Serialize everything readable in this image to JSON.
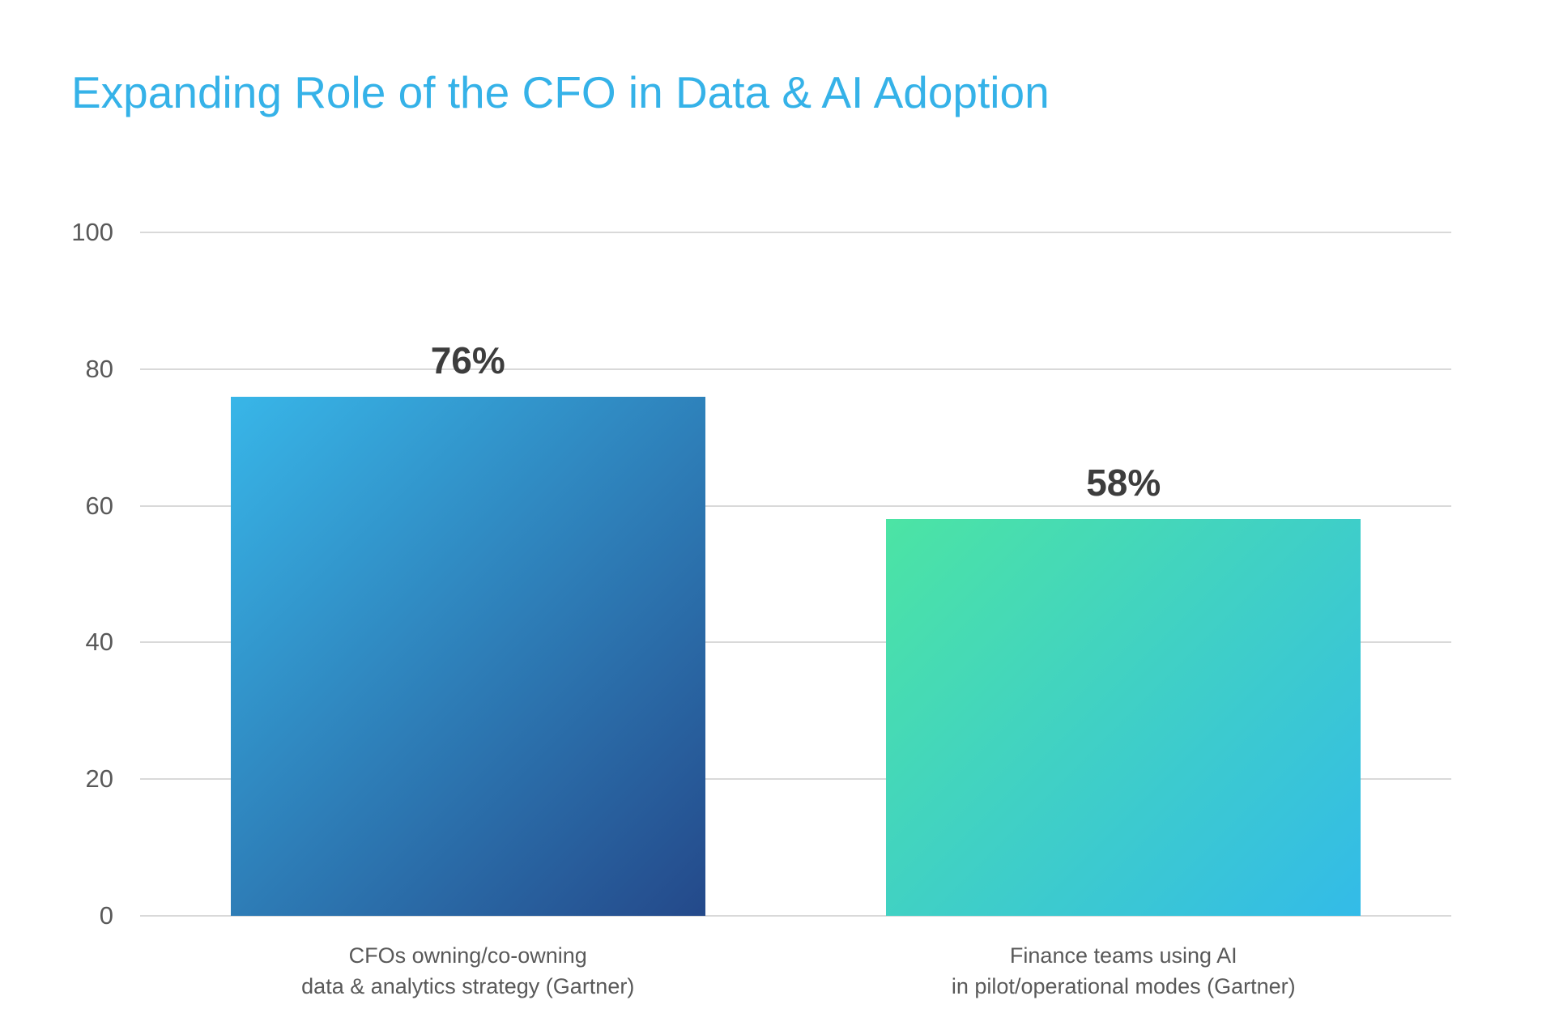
{
  "chart_data": {
    "type": "bar",
    "title": "Expanding Role of the CFO in Data & AI Adoption",
    "categories": [
      [
        "CFOs owning/co-owning",
        "data & analytics strategy (Gartner)"
      ],
      [
        "Finance teams using AI",
        "in pilot/operational modes (Gartner)"
      ]
    ],
    "values": [
      76,
      58
    ],
    "data_labels": [
      "76%",
      "58%"
    ],
    "xlabel": "",
    "ylabel": "",
    "ylim": [
      0,
      100
    ],
    "yticks": [
      0,
      20,
      40,
      60,
      80,
      100
    ],
    "grid": true,
    "legend": false,
    "bar_gradients": [
      {
        "from": "#38b6e8",
        "to": "#24498a"
      },
      {
        "from": "#4ce4a4",
        "to": "#33bbe8"
      }
    ]
  },
  "colors": {
    "title": "#35b2e8",
    "gridline": "#d9d9d9",
    "tick_label": "#595959",
    "category_label": "#595959",
    "data_label": "#3d3d3d",
    "background": "#ffffff"
  }
}
